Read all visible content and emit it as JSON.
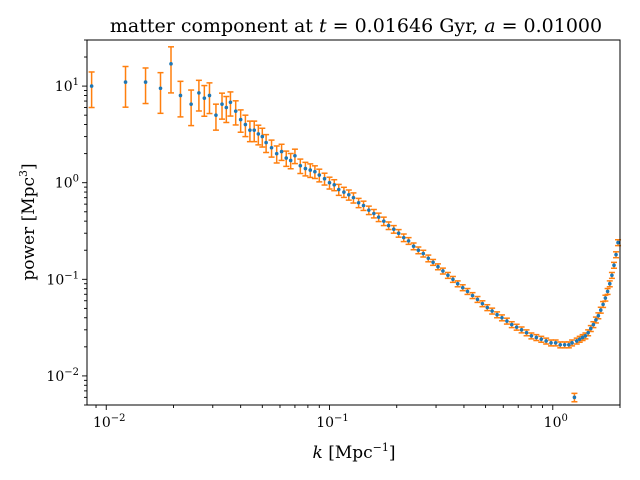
{
  "chart_data": {
    "type": "scatter",
    "title_text": "matter component at ",
    "title_t_symbol": "t",
    "title_t_value": " = 0.01646 Gyr, ",
    "title_a_symbol": "a",
    "title_a_value": " = 0.01000",
    "xlabel_symbol": "k",
    "xlabel_unit": " [Mpc",
    "xlabel_exponent": "−1",
    "xlabel_close": "]",
    "ylabel_text": "power [Mpc",
    "ylabel_exponent": "3",
    "ylabel_close": "]",
    "x_scale": "log",
    "y_scale": "log",
    "xlim": [
      0.0082,
      2.0
    ],
    "ylim": [
      0.005,
      30
    ],
    "x_ticks": [
      {
        "value": 0.01,
        "base": "10",
        "exp": "-2"
      },
      {
        "value": 0.1,
        "base": "10",
        "exp": "-1"
      },
      {
        "value": 1,
        "base": "10",
        "exp": "0"
      }
    ],
    "y_ticks": [
      {
        "value": 0.01,
        "base": "10",
        "exp": "-2"
      },
      {
        "value": 0.1,
        "base": "10",
        "exp": "-1"
      },
      {
        "value": 1,
        "base": "10",
        "exp": "0"
      },
      {
        "value": 10,
        "base": "10",
        "exp": "1"
      }
    ],
    "grid": false,
    "legend": "none",
    "colors": {
      "points": "#1f77b4",
      "errorbars": "#ff7f0e"
    },
    "series": [
      {
        "x": [
          0.0086,
          0.0122,
          0.015,
          0.0175,
          0.0195,
          0.0215,
          0.024,
          0.026,
          0.0275,
          0.029,
          0.031,
          0.033,
          0.0345,
          0.036,
          0.038,
          0.04,
          0.042,
          0.044,
          0.046,
          0.048,
          0.05,
          0.052,
          0.055,
          0.058,
          0.061,
          0.064,
          0.067,
          0.07,
          0.074,
          0.078,
          0.082,
          0.086,
          0.09,
          0.095,
          0.1,
          0.105,
          0.11,
          0.116,
          0.122,
          0.128,
          0.135,
          0.142,
          0.15,
          0.158,
          0.166,
          0.175,
          0.184,
          0.194,
          0.204,
          0.215,
          0.226,
          0.238,
          0.25,
          0.263,
          0.277,
          0.291,
          0.306,
          0.322,
          0.339,
          0.357,
          0.375,
          0.395,
          0.415,
          0.437,
          0.46,
          0.484,
          0.509,
          0.535,
          0.563,
          0.592,
          0.623,
          0.655,
          0.689,
          0.725,
          0.763,
          0.802,
          0.844,
          0.888,
          0.934,
          0.982,
          1.03,
          1.08,
          1.13,
          1.18,
          1.22,
          1.25,
          1.28,
          1.32,
          1.36,
          1.4,
          1.44,
          1.48,
          1.52,
          1.56,
          1.6,
          1.64,
          1.68,
          1.72,
          1.76,
          1.8,
          1.84,
          1.88,
          1.92,
          1.96
        ],
        "y": [
          10.0,
          11.0,
          11.0,
          9.5,
          17.0,
          8.0,
          6.5,
          8.5,
          7.5,
          8.0,
          5.0,
          6.5,
          6.0,
          6.8,
          5.5,
          4.5,
          4.0,
          3.5,
          3.5,
          3.2,
          3.0,
          2.6,
          2.3,
          2.0,
          2.1,
          1.8,
          1.7,
          1.9,
          1.5,
          1.4,
          1.35,
          1.3,
          1.2,
          1.1,
          1.0,
          0.95,
          0.85,
          0.8,
          0.75,
          0.7,
          0.62,
          0.58,
          0.52,
          0.48,
          0.44,
          0.4,
          0.36,
          0.33,
          0.3,
          0.27,
          0.25,
          0.22,
          0.2,
          0.185,
          0.165,
          0.15,
          0.135,
          0.122,
          0.11,
          0.1,
          0.09,
          0.082,
          0.075,
          0.068,
          0.062,
          0.056,
          0.051,
          0.047,
          0.043,
          0.04,
          0.037,
          0.034,
          0.032,
          0.03,
          0.028,
          0.026,
          0.025,
          0.024,
          0.023,
          0.022,
          0.022,
          0.021,
          0.021,
          0.021,
          0.022,
          0.006,
          0.023,
          0.024,
          0.025,
          0.026,
          0.028,
          0.031,
          0.034,
          0.038,
          0.042,
          0.048,
          0.055,
          0.064,
          0.075,
          0.09,
          0.11,
          0.14,
          0.18,
          0.24
        ],
        "y_err_rel": [
          0.4,
          0.45,
          0.4,
          0.45,
          0.5,
          0.4,
          0.4,
          0.35,
          0.35,
          0.35,
          0.3,
          0.3,
          0.3,
          0.28,
          0.28,
          0.26,
          0.25,
          0.24,
          0.24,
          0.23,
          0.22,
          0.21,
          0.2,
          0.2,
          0.19,
          0.18,
          0.18,
          0.17,
          0.17,
          0.16,
          0.16,
          0.15,
          0.15,
          0.14,
          0.14,
          0.13,
          0.13,
          0.12,
          0.12,
          0.12,
          0.11,
          0.11,
          0.1,
          0.1,
          0.1,
          0.1,
          0.09,
          0.09,
          0.09,
          0.09,
          0.08,
          0.08,
          0.08,
          0.08,
          0.08,
          0.07,
          0.07,
          0.07,
          0.07,
          0.07,
          0.07,
          0.07,
          0.07,
          0.07,
          0.07,
          0.07,
          0.07,
          0.07,
          0.07,
          0.07,
          0.07,
          0.07,
          0.07,
          0.07,
          0.07,
          0.07,
          0.07,
          0.07,
          0.07,
          0.07,
          0.07,
          0.07,
          0.07,
          0.07,
          0.07,
          0.1,
          0.07,
          0.07,
          0.07,
          0.07,
          0.07,
          0.07,
          0.07,
          0.07,
          0.07,
          0.07,
          0.07,
          0.07,
          0.07,
          0.07,
          0.07,
          0.07,
          0.07,
          0.07
        ]
      }
    ]
  }
}
